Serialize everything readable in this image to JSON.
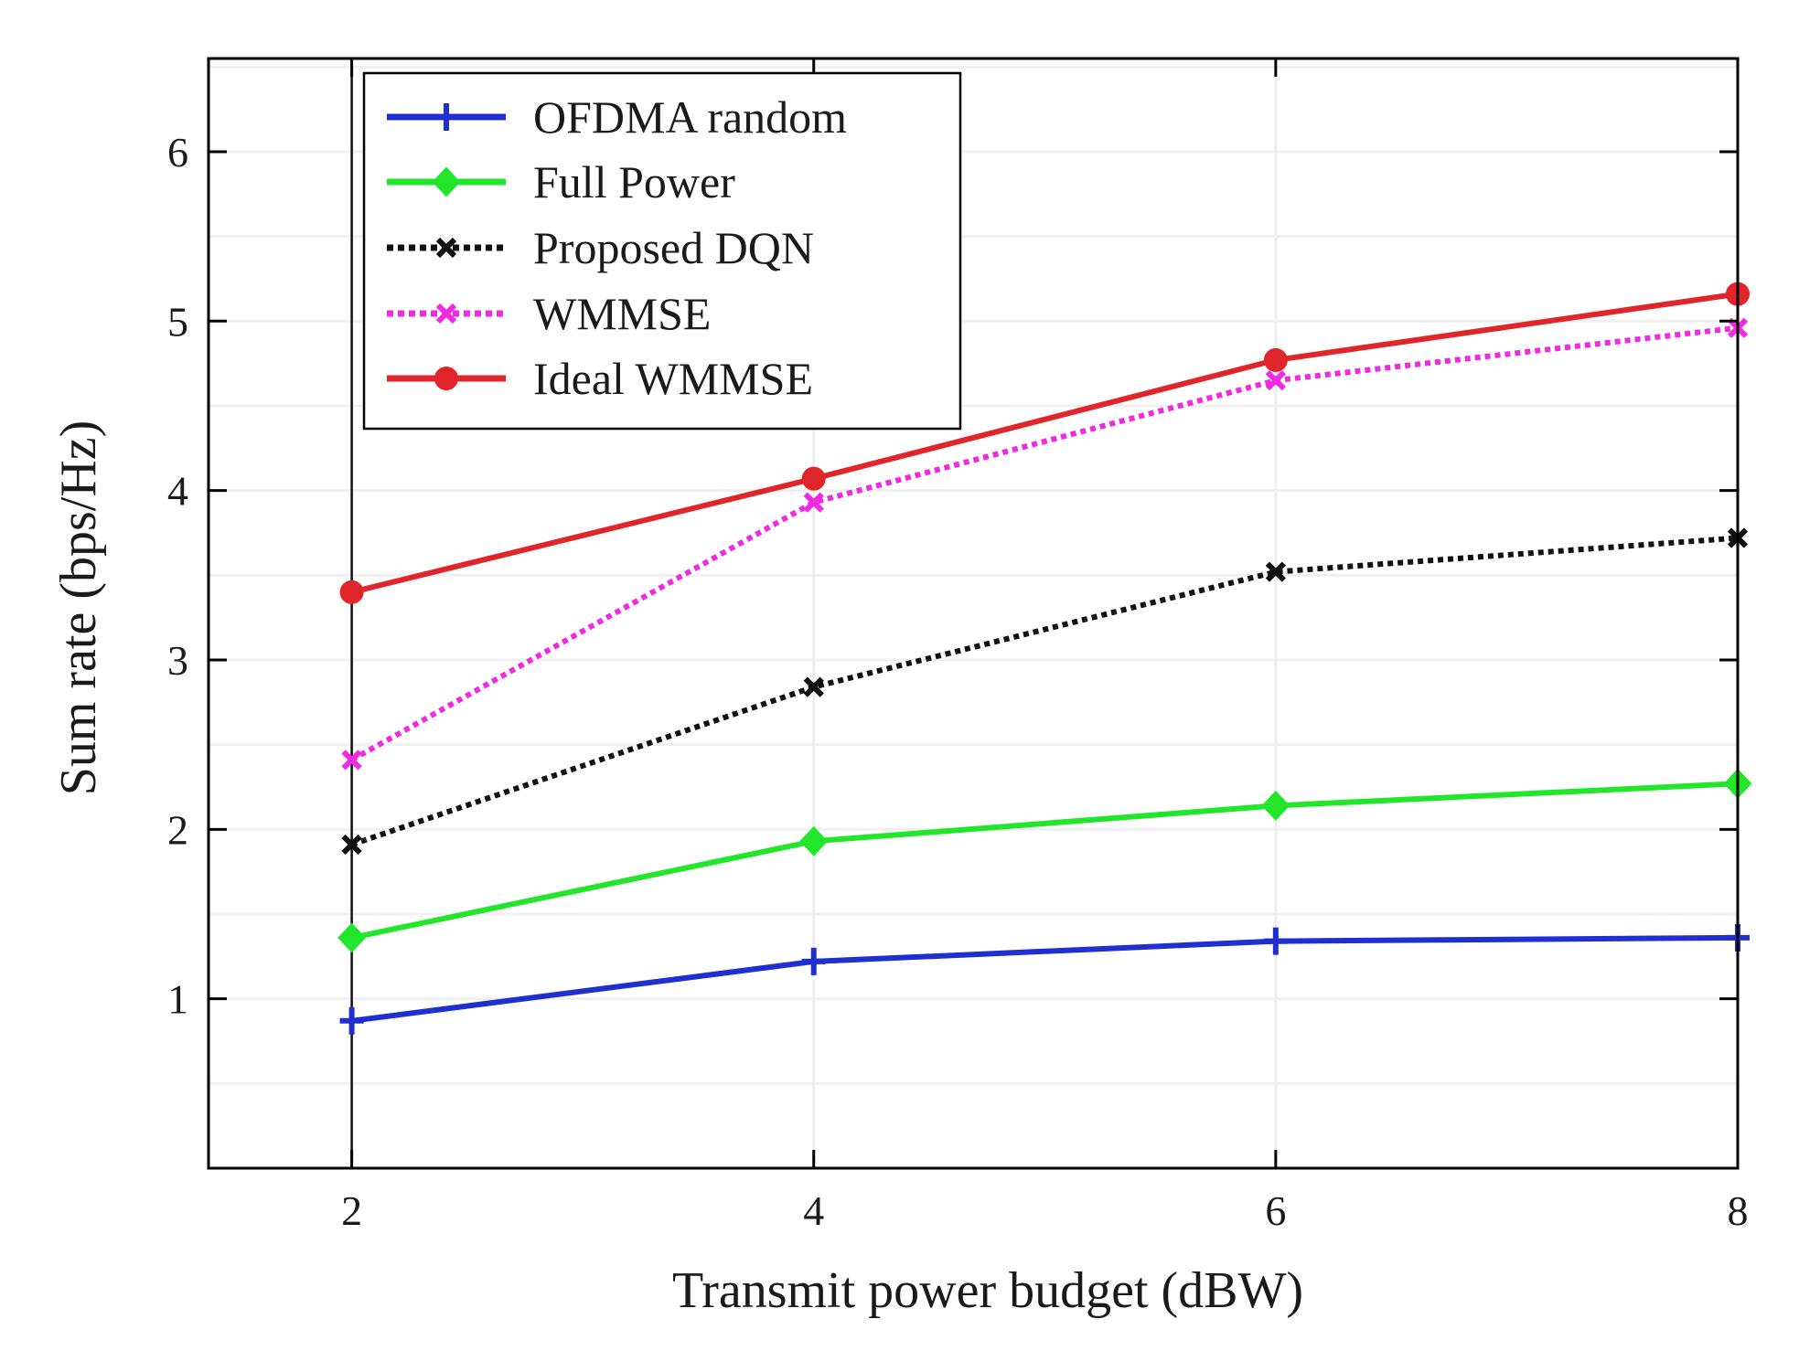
{
  "chart_data": {
    "type": "line",
    "title": "",
    "xlabel": "Transmit power budget (dBW)",
    "ylabel": "Sum rate (bps/Hz)",
    "xlim": [
      1.38,
      8.0
    ],
    "ylim": [
      0.0,
      6.55
    ],
    "xticks": [
      2,
      4,
      6,
      8
    ],
    "yticks": [
      1,
      2,
      3,
      4,
      5,
      6
    ],
    "x": [
      2,
      4,
      6,
      8
    ],
    "legend_position": "top-left",
    "series": [
      {
        "name": "OFDMA random",
        "color": "#1f2fd0",
        "dash": "solid",
        "marker": "plus",
        "values": [
          0.87,
          1.22,
          1.34,
          1.36
        ]
      },
      {
        "name": "Full Power",
        "color": "#22e62a",
        "dash": "solid",
        "marker": "diamond",
        "values": [
          1.36,
          1.93,
          2.14,
          2.27
        ]
      },
      {
        "name": "Proposed DQN",
        "color": "#111111",
        "dash": "dotted",
        "marker": "x",
        "values": [
          1.91,
          2.84,
          3.52,
          3.72
        ]
      },
      {
        "name": "WMMSE",
        "color": "#f02ae0",
        "dash": "dotted",
        "marker": "x",
        "values": [
          2.41,
          3.93,
          4.65,
          4.96
        ]
      },
      {
        "name": "Ideal WMMSE",
        "color": "#e0262a",
        "dash": "solid",
        "marker": "circle",
        "values": [
          3.4,
          4.07,
          4.77,
          5.16
        ]
      }
    ]
  }
}
